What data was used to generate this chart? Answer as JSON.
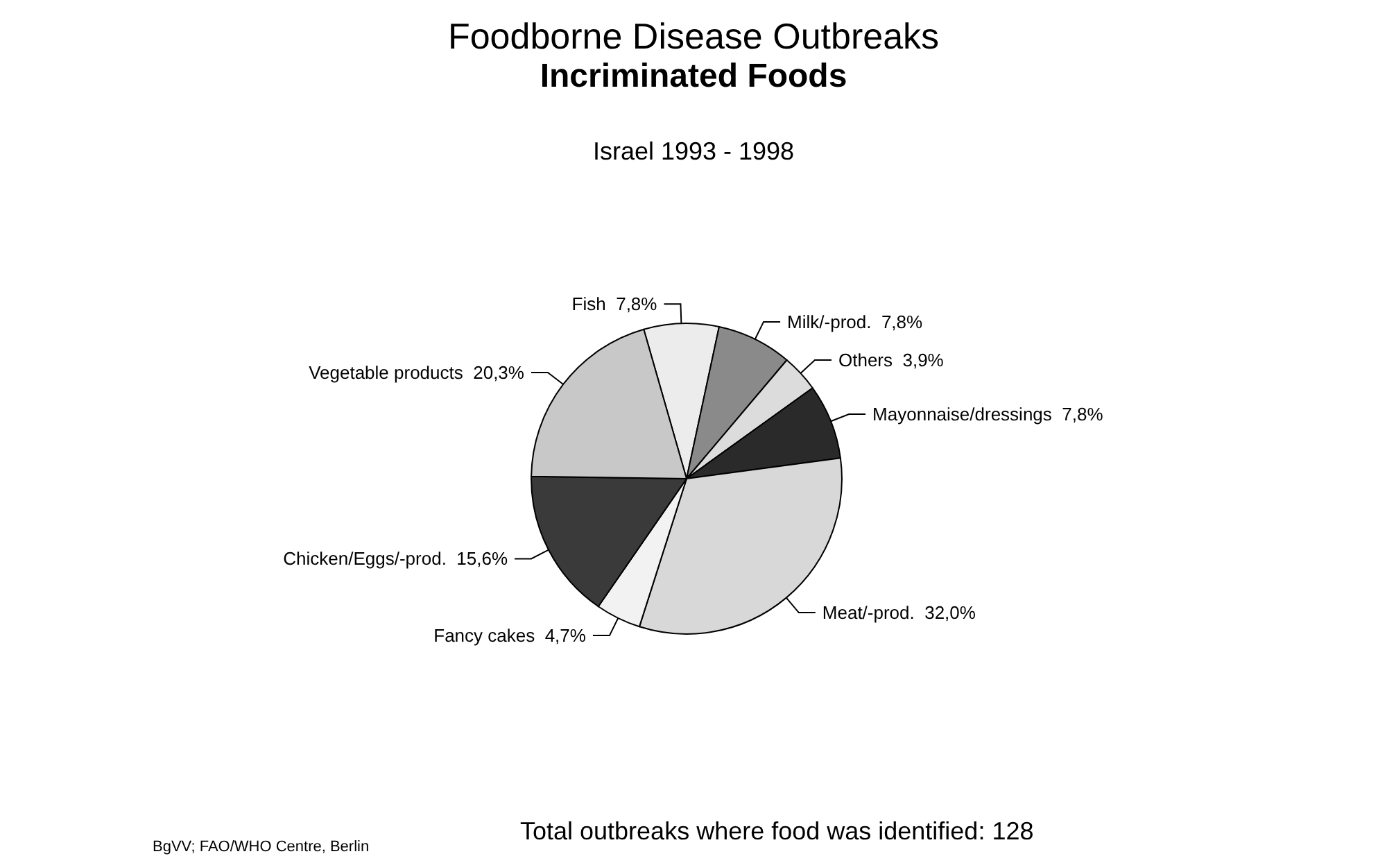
{
  "chart_data": {
    "type": "pie",
    "title": "Foodborne Disease Outbreaks",
    "subtitle": "Incriminated Foods",
    "categories": [
      "Fish",
      "Milk/-prod.",
      "Others",
      "Mayonnaise/dressings",
      "Meat/-prod.",
      "Fancy cakes",
      "Chicken/Eggs/-prod.",
      "Vegetable products"
    ],
    "values": [
      7.8,
      7.8,
      3.9,
      7.8,
      32.0,
      4.7,
      15.6,
      20.3
    ],
    "value_labels": [
      "7,8%",
      "7,8%",
      "3,9%",
      "7,8%",
      "32,0%",
      "4,7%",
      "15,6%",
      "20,3%"
    ],
    "colors": [
      "#ececec",
      "#8a8a8a",
      "#dcdcdc",
      "#2a2a2a",
      "#d8d8d8",
      "#f2f2f2",
      "#3a3a3a",
      "#c8c8c8"
    ],
    "annotations": [
      "Israel 1993 - 1998",
      "Total outbreaks where food was identified: 128",
      "BgVV; FAO/WHO Centre, Berlin"
    ],
    "legend": false
  }
}
